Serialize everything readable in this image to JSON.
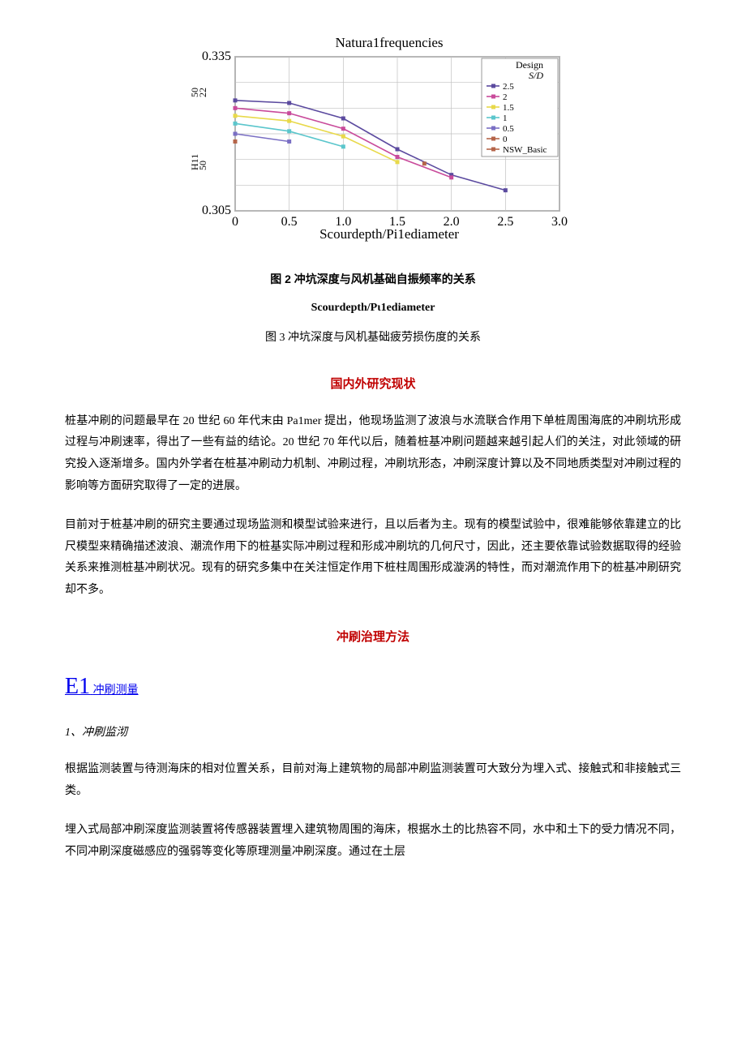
{
  "chart": {
    "type": "line",
    "title": "Natura1frequencies",
    "title_fontsize": 17,
    "xlabel": "Scourdepth/Pi1ediameter",
    "xlabel_fontsize": 17,
    "ylim": [
      0.305,
      0.335
    ],
    "ytick_labels": [
      "0.305",
      "",
      "",
      "",
      "0.335"
    ],
    "ytick_side_labels_top": [
      "50",
      "22"
    ],
    "ytick_side_labels_bottom": [
      "H11",
      "50"
    ],
    "xlim": [
      0,
      3.0
    ],
    "xticks": [
      0,
      0.5,
      1.0,
      1.5,
      2.0,
      2.5,
      3.0
    ],
    "background_color": "#ffffff",
    "grid_color": "#c0c0c0",
    "frame_color": "#808080",
    "legend_title": "Design",
    "legend_subtitle": "S/D",
    "series": [
      {
        "label": "2.5",
        "color": "#5b4a9f",
        "marker": "diamond",
        "points": [
          [
            0,
            0.3265
          ],
          [
            0.5,
            0.326
          ],
          [
            1.0,
            0.323
          ],
          [
            1.5,
            0.317
          ],
          [
            2.0,
            0.312
          ],
          [
            2.5,
            0.309
          ]
        ]
      },
      {
        "label": "2",
        "color": "#c94b9b",
        "marker": "square",
        "points": [
          [
            0,
            0.325
          ],
          [
            0.5,
            0.324
          ],
          [
            1.0,
            0.321
          ],
          [
            1.5,
            0.3155
          ],
          [
            2.0,
            0.3115
          ]
        ]
      },
      {
        "label": "1.5",
        "color": "#e8d94a",
        "marker": "triangle",
        "points": [
          [
            0,
            0.3235
          ],
          [
            0.5,
            0.3225
          ],
          [
            1.0,
            0.3195
          ],
          [
            1.5,
            0.3145
          ]
        ]
      },
      {
        "label": "1",
        "color": "#5bc6cc",
        "marker": "line",
        "points": [
          [
            0,
            0.322
          ],
          [
            0.5,
            0.3205
          ],
          [
            1.0,
            0.3175
          ]
        ]
      },
      {
        "label": "0.5",
        "color": "#7a6fc4",
        "marker": "star",
        "points": [
          [
            0,
            0.32
          ],
          [
            0.5,
            0.3185
          ]
        ]
      },
      {
        "label": "0",
        "color": "#b5654a",
        "marker": "circle",
        "points": [
          [
            0,
            0.3185
          ]
        ]
      },
      {
        "label": "NSW_Basic",
        "color": "#b5654a",
        "marker": "circle",
        "points": [
          [
            1.75,
            0.3142
          ]
        ]
      }
    ]
  },
  "captions": {
    "fig2": "图 2 冲坑深度与风机基础自振频率的关系",
    "fig3_sub": "Scourdepth/Pι1ediameter",
    "fig3": "图 3 冲坑深度与风机基础疲劳损伤度的关系"
  },
  "sections": {
    "research_status_title": "国内外研究现状",
    "research_status_p1": "桩基冲刷的问题最早在 20 世纪 60 年代末由 Pa1mer 提出，他现场监测了波浪与水流联合作用下单桩周围海底的冲刷坑形成过程与冲刷速率，得出了一些有益的结论。20 世纪 70 年代以后，随着桩基冲刷问题越来越引起人们的关注，对此领域的研究投入逐渐增多。国内外学者在桩基冲刷动力机制、冲刷过程，冲刷坑形态，冲刷深度计算以及不同地质类型对冲刷过程的影响等方面研究取得了一定的进展。",
    "research_status_p2": "目前对于桩基冲刷的研究主要通过现场监测和模型试验来进行，且以后者为主。现有的模型试验中，很难能够依靠建立的比尺模型来精确描述波浪、潮流作用下的桩基实际冲刷过程和形成冲刷坑的几何尺寸，因此，还主要依靠试验数据取得的经验关系来推测桩基冲刷状况。现有的研究多集中在关注恒定作用下桩柱周围形成漩涡的特性，而对潮流作用下的桩基冲刷研究却不多。",
    "treatment_title": "冲刷治理方法",
    "e1_prefix": "E1",
    "e1_label": "冲刷测量",
    "sub1_label": "1、冲刷监沏",
    "sub1_p1": "根据监测装置与待测海床的相对位置关系，目前对海上建筑物的局部冲刷监测装置可大致分为埋入式、接触式和非接触式三类。",
    "sub1_p2": "埋入式局部冲刷深度监测装置将传感器装置埋入建筑物周围的海床，根据水土的比热容不同，水中和土下的受力情况不同，不同冲刷深度磁感应的强弱等变化等原理测量冲刷深度。通过在土层"
  }
}
